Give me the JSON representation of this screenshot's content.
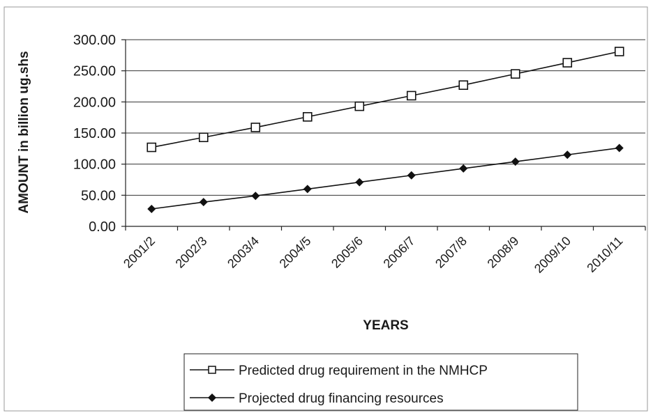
{
  "chart_data": {
    "type": "line",
    "title": "",
    "xlabel": "YEARS",
    "ylabel": "AMOUNT in billion ug.shs",
    "ylim": [
      0,
      300
    ],
    "yticks": [
      "0.00",
      "50.00",
      "100.00",
      "150.00",
      "200.00",
      "250.00",
      "300.00"
    ],
    "categories": [
      "2001/2",
      "2002/3",
      "2003/4",
      "2004/5",
      "2005/6",
      "2006/7",
      "2007/8",
      "2008/9",
      "2009/10",
      "2010/11"
    ],
    "grid": true,
    "legend_position": "bottom",
    "series": [
      {
        "name": "Predicted drug requirement in the NMHCP",
        "marker": "hollow-square",
        "color": "#111111",
        "values": [
          127,
          143,
          159,
          176,
          193,
          210,
          227,
          245,
          263,
          281
        ]
      },
      {
        "name": "Projected drug financing resources",
        "marker": "filled-diamond",
        "color": "#111111",
        "values": [
          28,
          39,
          49,
          60,
          71,
          82,
          93,
          104,
          115,
          126
        ]
      }
    ]
  }
}
